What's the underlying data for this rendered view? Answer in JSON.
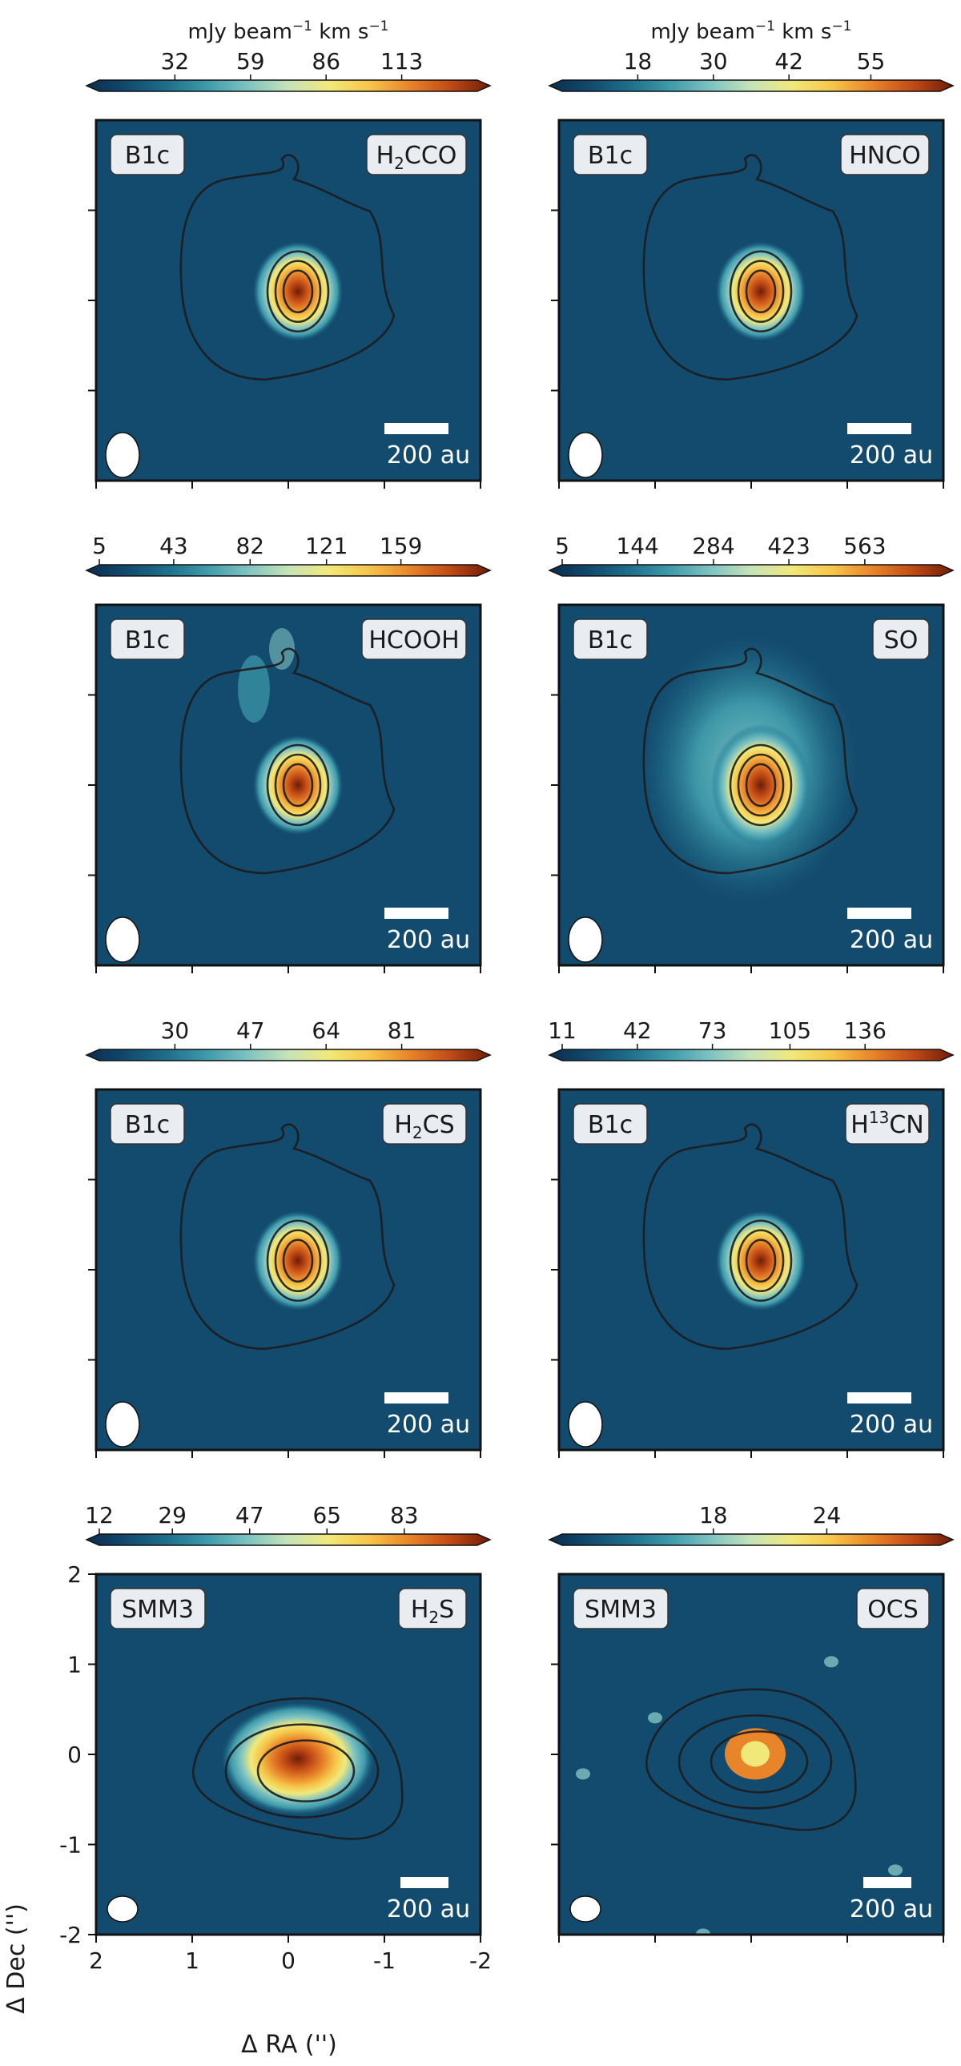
{
  "figure": {
    "xlabel": "Δ RA ('')",
    "ylabel": "Δ Dec ('')",
    "colorbar_unit_main": "mJy beam",
    "colorbar_unit_sup": "−1",
    "colorbar_unit_tail": " km s",
    "colorbar_unit_sup2": "−1",
    "scalebar_label": "200 au",
    "colormap": [
      "#0b2d4d",
      "#124a6e",
      "#1f6f8c",
      "#3f9bab",
      "#7fc3c2",
      "#c6e3b8",
      "#f0e97a",
      "#f6c64a",
      "#e8852a",
      "#c24a16",
      "#6e1d07"
    ],
    "background_color": "#134b6e",
    "contour_color": "#1c1c1c",
    "label_box_color": "#e9edf2"
  },
  "chart_data": [
    {
      "type": "heatmap",
      "source": "B1c",
      "molecule": "H₂CCO",
      "mol_main": "H",
      "mol_sub": "2",
      "mol_tail": "CCO",
      "colorbar_ticks": [
        "32",
        "59",
        "86",
        "113"
      ],
      "colorbar_range": [
        5,
        140
      ],
      "xlim": [
        2,
        -2
      ],
      "ylim": [
        -2,
        2
      ],
      "peak": [
        -0.1,
        0.1
      ]
    },
    {
      "type": "heatmap",
      "source": "B1c",
      "molecule": "HNCO",
      "mol_main": "HNCO",
      "mol_sub": "",
      "mol_tail": "",
      "colorbar_ticks": [
        "18",
        "30",
        "42",
        "55"
      ],
      "colorbar_range": [
        6,
        66
      ],
      "xlim": [
        2,
        -2
      ],
      "ylim": [
        -2,
        2
      ],
      "peak": [
        -0.1,
        0.1
      ]
    },
    {
      "type": "heatmap",
      "source": "B1c",
      "molecule": "HCOOH",
      "mol_main": "HCOOH",
      "mol_sub": "",
      "mol_tail": "",
      "colorbar_ticks": [
        "5",
        "43",
        "82",
        "121",
        "159"
      ],
      "colorbar_range": [
        5,
        198
      ],
      "xlim": [
        2,
        -2
      ],
      "ylim": [
        -2,
        2
      ],
      "peak": [
        -0.1,
        0.0
      ]
    },
    {
      "type": "heatmap",
      "source": "B1c",
      "molecule": "SO",
      "mol_main": "SO",
      "mol_sub": "",
      "mol_tail": "",
      "colorbar_ticks": [
        "5",
        "144",
        "284",
        "423",
        "563"
      ],
      "colorbar_range": [
        5,
        702
      ],
      "xlim": [
        2,
        -2
      ],
      "ylim": [
        -2,
        2
      ],
      "peak": [
        -0.1,
        0.0
      ]
    },
    {
      "type": "heatmap",
      "source": "B1c",
      "molecule": "H₂CS",
      "mol_main": "H",
      "mol_sub": "2",
      "mol_tail": "CS",
      "colorbar_ticks": [
        "30",
        "47",
        "64",
        "81"
      ],
      "colorbar_range": [
        13,
        98
      ],
      "xlim": [
        2,
        -2
      ],
      "ylim": [
        -2,
        2
      ],
      "peak": [
        -0.1,
        0.1
      ]
    },
    {
      "type": "heatmap",
      "source": "B1c",
      "molecule": "H¹³CN",
      "mol_main": "H",
      "mol_sup": "13",
      "mol_tail": "CN",
      "colorbar_ticks": [
        "11",
        "42",
        "73",
        "105",
        "136"
      ],
      "colorbar_range": [
        11,
        167
      ],
      "xlim": [
        2,
        -2
      ],
      "ylim": [
        -2,
        2
      ],
      "peak": [
        -0.1,
        0.1
      ]
    },
    {
      "type": "heatmap",
      "source": "SMM3",
      "molecule": "H₂S",
      "mol_main": "H",
      "mol_sub": "2",
      "mol_tail": "S",
      "colorbar_ticks": [
        "12",
        "29",
        "47",
        "65",
        "83"
      ],
      "colorbar_range": [
        12,
        100
      ],
      "xlim": [
        2,
        -2
      ],
      "ylim": [
        -2,
        2
      ],
      "x_ticks": [
        "2",
        "1",
        "0",
        "-1",
        "-2"
      ],
      "y_ticks": [
        "2",
        "1",
        "0",
        "-1",
        "-2"
      ],
      "peak": [
        -0.1,
        -0.05
      ]
    },
    {
      "type": "heatmap",
      "source": "SMM3",
      "molecule": "OCS",
      "mol_main": "OCS",
      "mol_sub": "",
      "mol_tail": "",
      "colorbar_ticks": [
        "18",
        "24"
      ],
      "colorbar_range": [
        10,
        30
      ],
      "xlim": [
        2,
        -2
      ],
      "ylim": [
        -2,
        2
      ],
      "peak": [
        0.0,
        0.05
      ]
    }
  ]
}
